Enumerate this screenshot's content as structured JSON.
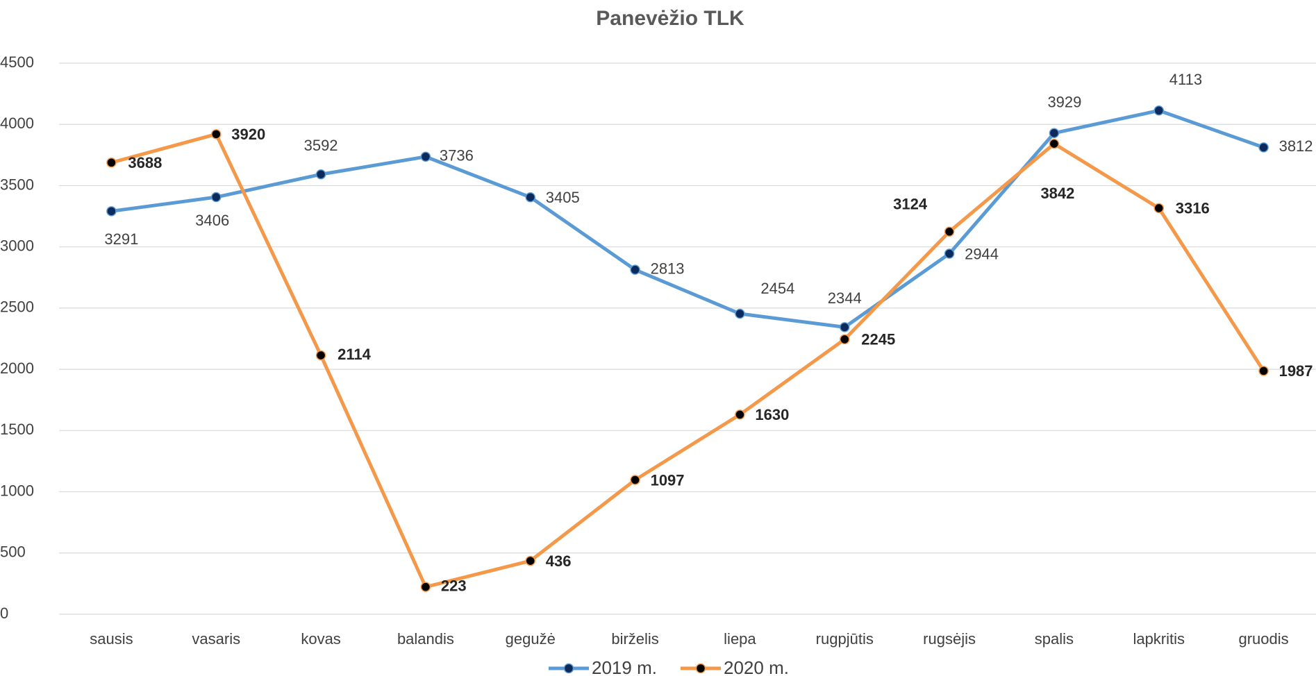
{
  "chart_data": {
    "type": "line",
    "title": "Panevėžio TLK",
    "categories": [
      "sausis",
      "vasaris",
      "kovas",
      "balandis",
      "gegužė",
      "birželis",
      "liepa",
      "rugpjūtis",
      "rugsėjis",
      "spalis",
      "lapkritis",
      "gruodis"
    ],
    "series": [
      {
        "name": "2019 m.",
        "color": "#5b9bd5",
        "values": [
          3291,
          3406,
          3592,
          3736,
          3405,
          2813,
          2454,
          2344,
          2944,
          3929,
          4113,
          3812
        ]
      },
      {
        "name": "2020 m.",
        "color": "#f4984a",
        "values": [
          3688,
          3920,
          2114,
          223,
          436,
          1097,
          1630,
          2245,
          3124,
          3842,
          3316,
          1987
        ]
      }
    ],
    "ylim": [
      0,
      4500
    ],
    "yticks": [
      0,
      500,
      1000,
      1500,
      2000,
      2500,
      3000,
      3500,
      4000,
      4500
    ],
    "grid": true,
    "legend": "bottom"
  }
}
